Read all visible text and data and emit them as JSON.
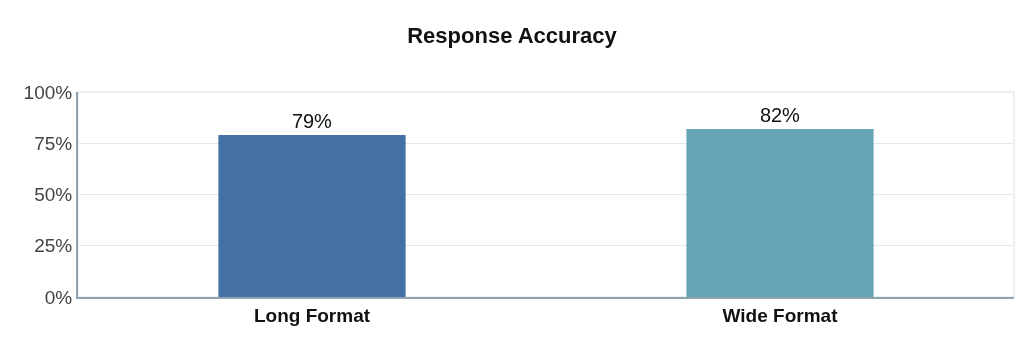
{
  "chart_data": {
    "type": "bar",
    "title": "Response Accuracy",
    "categories": [
      "Long Format",
      "Wide Format"
    ],
    "values": [
      79,
      82
    ],
    "colors": [
      "#4470a5",
      "#67a5b8"
    ],
    "value_labels": [
      "79%",
      "82%"
    ],
    "ylim": [
      0,
      100
    ],
    "yticks": [
      {
        "value": 0,
        "label": "0%"
      },
      {
        "value": 25,
        "label": "25%"
      },
      {
        "value": 50,
        "label": "50%"
      },
      {
        "value": 75,
        "label": "75%"
      },
      {
        "value": 100,
        "label": "100%"
      }
    ],
    "grid": "y"
  }
}
